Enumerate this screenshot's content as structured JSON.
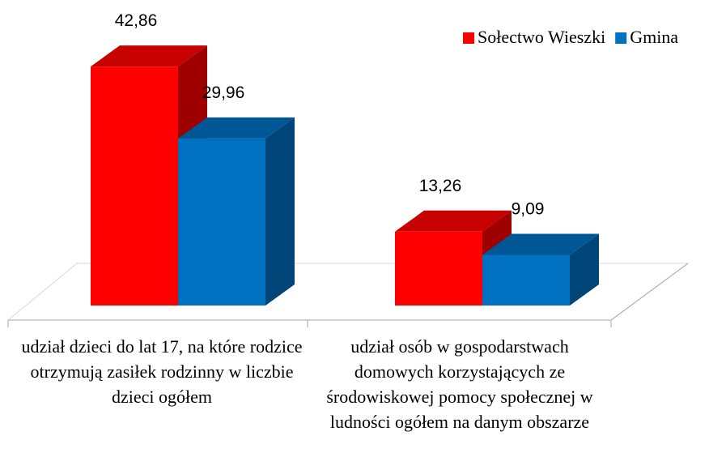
{
  "chart_data": {
    "type": "bar3d",
    "categories": [
      "udział dzieci do lat 17, na które rodzice otrzymują zasiłek rodzinny w liczbie dzieci ogółem",
      "udział osób w gospodarstwach domowych korzystających ze środowiskowej pomocy społecznej w ludności ogółem na danym obszarze"
    ],
    "series": [
      {
        "name": "Sołectwo Wieszki",
        "color": "#ff0000",
        "values": [
          42.86,
          13.26
        ],
        "value_labels": [
          "42,86",
          "13,26"
        ]
      },
      {
        "name": "Gmina",
        "color": "#0070c0",
        "values": [
          29.96,
          9.09
        ],
        "value_labels": [
          "29,96",
          "9,09"
        ]
      }
    ],
    "legend": "top-right"
  }
}
